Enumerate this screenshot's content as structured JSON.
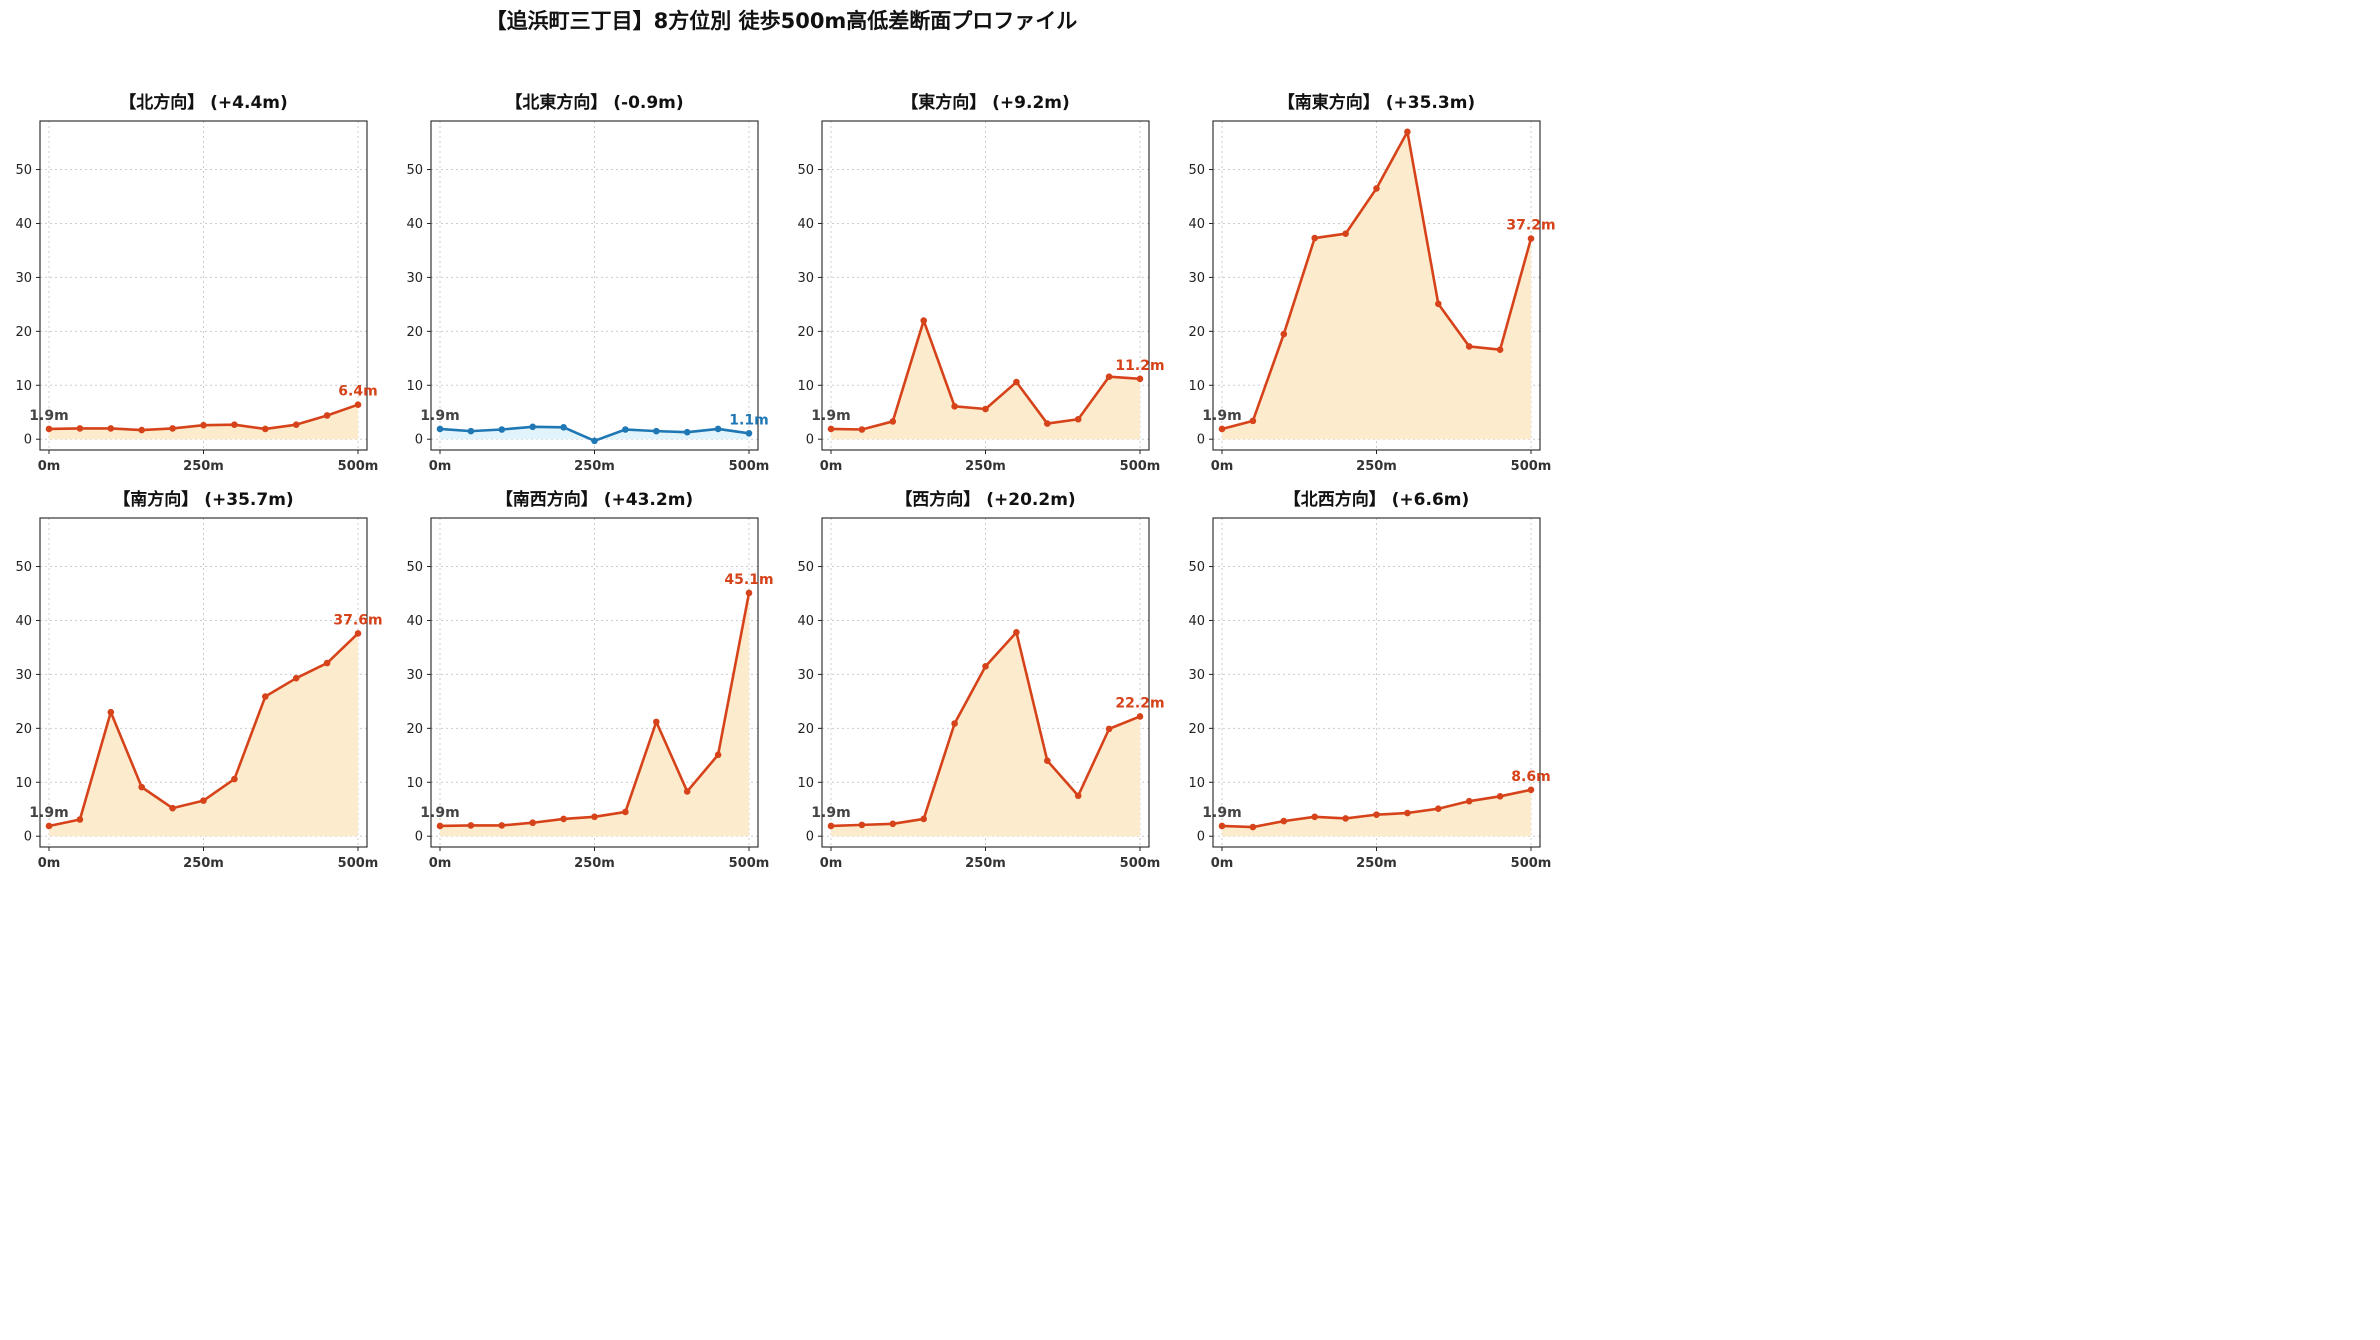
{
  "title": "【追浜町三丁目】8方位別 徒歩500m高低差断面プロファイル",
  "colors": {
    "up_line": "#d6431a",
    "up_fill": "#fdebcd",
    "down_line": "#1f77b4",
    "down_fill": "#e1f3fb",
    "grid": "#cccccc",
    "start_label": "#444444"
  },
  "chart_data": [
    {
      "type": "line",
      "title": "【北方向】 (+4.4m)",
      "trend": "up",
      "x": [
        0,
        50,
        100,
        150,
        200,
        250,
        300,
        350,
        400,
        450,
        500
      ],
      "values": [
        1.9,
        2.0,
        2.0,
        1.7,
        2.0,
        2.6,
        2.7,
        1.9,
        2.7,
        4.4,
        6.4
      ],
      "start_label": "1.9m",
      "end_label": "6.4m",
      "xticks": [
        "0m",
        "250m",
        "500m"
      ],
      "yticks": [
        0,
        10,
        20,
        30,
        40,
        50
      ],
      "ylim": [
        -2,
        59
      ],
      "grid": true
    },
    {
      "type": "line",
      "title": "【北東方向】 (-0.9m)",
      "trend": "down",
      "x": [
        0,
        50,
        100,
        150,
        200,
        250,
        300,
        350,
        400,
        450,
        500
      ],
      "values": [
        1.9,
        1.5,
        1.8,
        2.3,
        2.2,
        -0.3,
        1.8,
        1.5,
        1.3,
        1.9,
        1.1
      ],
      "start_label": "1.9m",
      "end_label": "1.1m",
      "xticks": [
        "0m",
        "250m",
        "500m"
      ],
      "yticks": [
        0,
        10,
        20,
        30,
        40,
        50
      ],
      "ylim": [
        -2,
        59
      ],
      "grid": true
    },
    {
      "type": "line",
      "title": "【東方向】 (+9.2m)",
      "trend": "up",
      "x": [
        0,
        50,
        100,
        150,
        200,
        250,
        300,
        350,
        400,
        450,
        500
      ],
      "values": [
        1.9,
        1.8,
        3.3,
        22.0,
        6.1,
        5.6,
        10.6,
        2.9,
        3.7,
        11.6,
        11.2
      ],
      "start_label": "1.9m",
      "end_label": "11.2m",
      "xticks": [
        "0m",
        "250m",
        "500m"
      ],
      "yticks": [
        0,
        10,
        20,
        30,
        40,
        50
      ],
      "ylim": [
        -2,
        59
      ],
      "grid": true
    },
    {
      "type": "line",
      "title": "【南東方向】 (+35.3m)",
      "trend": "up",
      "x": [
        0,
        50,
        100,
        150,
        200,
        250,
        300,
        350,
        400,
        450,
        500
      ],
      "values": [
        1.9,
        3.4,
        19.5,
        37.3,
        38.1,
        46.5,
        57.0,
        25.1,
        17.2,
        16.6,
        37.2
      ],
      "start_label": "1.9m",
      "end_label": "37.2m",
      "xticks": [
        "0m",
        "250m",
        "500m"
      ],
      "yticks": [
        0,
        10,
        20,
        30,
        40,
        50
      ],
      "ylim": [
        -2,
        59
      ],
      "grid": true
    },
    {
      "type": "line",
      "title": "【南方向】 (+35.7m)",
      "trend": "up",
      "x": [
        0,
        50,
        100,
        150,
        200,
        250,
        300,
        350,
        400,
        450,
        500
      ],
      "values": [
        1.9,
        3.1,
        23.0,
        9.1,
        5.2,
        6.6,
        10.6,
        25.9,
        29.3,
        32.1,
        37.6
      ],
      "start_label": "1.9m",
      "end_label": "37.6m",
      "xticks": [
        "0m",
        "250m",
        "500m"
      ],
      "yticks": [
        0,
        10,
        20,
        30,
        40,
        50
      ],
      "ylim": [
        -2,
        59
      ],
      "grid": true
    },
    {
      "type": "line",
      "title": "【南西方向】 (+43.2m)",
      "trend": "up",
      "x": [
        0,
        50,
        100,
        150,
        200,
        250,
        300,
        350,
        400,
        450,
        500
      ],
      "values": [
        1.9,
        2.0,
        2.0,
        2.5,
        3.2,
        3.6,
        4.5,
        21.2,
        8.3,
        15.1,
        45.1
      ],
      "start_label": "1.9m",
      "end_label": "45.1m",
      "xticks": [
        "0m",
        "250m",
        "500m"
      ],
      "yticks": [
        0,
        10,
        20,
        30,
        40,
        50
      ],
      "ylim": [
        -2,
        59
      ],
      "grid": true
    },
    {
      "type": "line",
      "title": "【西方向】 (+20.2m)",
      "trend": "up",
      "x": [
        0,
        50,
        100,
        150,
        200,
        250,
        300,
        350,
        400,
        450,
        500
      ],
      "values": [
        1.9,
        2.1,
        2.3,
        3.2,
        20.9,
        31.5,
        37.8,
        14.0,
        7.5,
        19.9,
        22.2
      ],
      "start_label": "1.9m",
      "end_label": "22.2m",
      "xticks": [
        "0m",
        "250m",
        "500m"
      ],
      "yticks": [
        0,
        10,
        20,
        30,
        40,
        50
      ],
      "ylim": [
        -2,
        59
      ],
      "grid": true
    },
    {
      "type": "line",
      "title": "【北西方向】 (+6.6m)",
      "trend": "up",
      "x": [
        0,
        50,
        100,
        150,
        200,
        250,
        300,
        350,
        400,
        450,
        500
      ],
      "values": [
        1.9,
        1.7,
        2.8,
        3.6,
        3.3,
        4.0,
        4.3,
        5.1,
        6.5,
        7.4,
        8.6
      ],
      "start_label": "1.9m",
      "end_label": "8.6m",
      "xticks": [
        "0m",
        "250m",
        "500m"
      ],
      "yticks": [
        0,
        10,
        20,
        30,
        40,
        50
      ],
      "ylim": [
        -2,
        59
      ],
      "grid": true
    }
  ]
}
